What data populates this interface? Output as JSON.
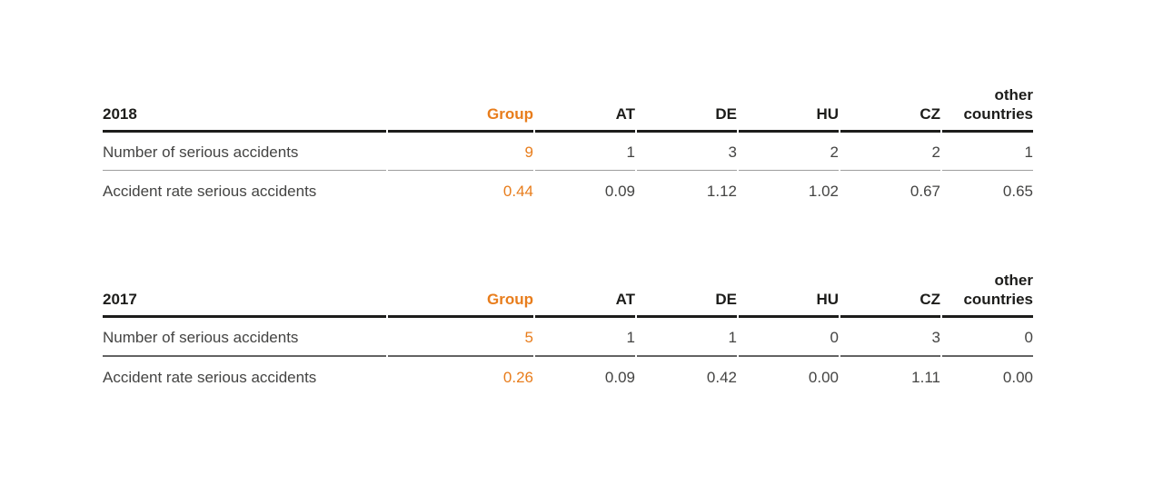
{
  "page": {
    "background": "#ffffff",
    "accent_color": "#e87d1c",
    "header_text_color": "#1d1d1b",
    "body_text_color": "#444443",
    "header_rule_color": "#1d1d1b",
    "divider_color_2018": "#9e9e9e",
    "divider_color_2017": "#636363"
  },
  "tables": [
    {
      "year": "2018",
      "columns": [
        "Group",
        "AT",
        "DE",
        "HU",
        "CZ",
        "other countries"
      ],
      "rows": [
        {
          "label": "Number of serious accidents",
          "values": [
            "9",
            "1",
            "3",
            "2",
            "2",
            "1"
          ]
        },
        {
          "label": "Accident rate serious accidents",
          "values": [
            "0.44",
            "0.09",
            "1.12",
            "1.02",
            "0.67",
            "0.65"
          ]
        }
      ]
    },
    {
      "year": "2017",
      "columns": [
        "Group",
        "AT",
        "DE",
        "HU",
        "CZ",
        "other countries"
      ],
      "rows": [
        {
          "label": "Number of serious accidents",
          "values": [
            "5",
            "1",
            "1",
            "0",
            "3",
            "0"
          ]
        },
        {
          "label": "Accident rate serious accidents",
          "values": [
            "0.26",
            "0.09",
            "0.42",
            "0.00",
            "1.11",
            "0.00"
          ]
        }
      ]
    }
  ]
}
